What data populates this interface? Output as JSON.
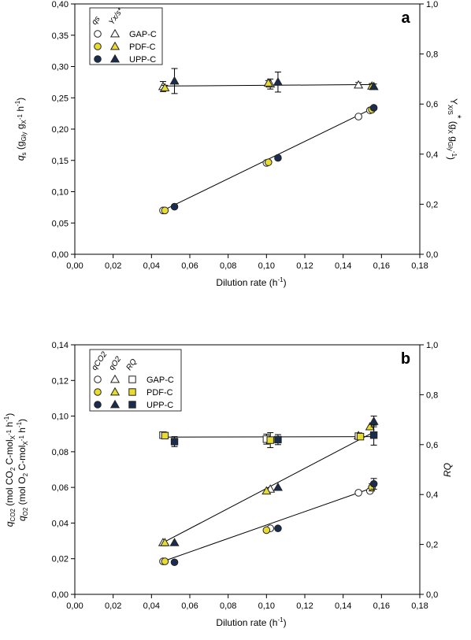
{
  "chart_data": [
    {
      "type": "scatter",
      "panel_label": "a",
      "xlabel": "Dilution rate (h",
      "xlabel_sup": "-1",
      "xlabel_end": ")",
      "ylabel": "q_s (g_Gly g_X^-1 h^-1)",
      "y2label": "Y_X/S* (g_X g_Gly^-1)",
      "xlim": [
        0,
        0.18
      ],
      "ylim": [
        0,
        0.4
      ],
      "y2lim": [
        0,
        1.0
      ],
      "x_ticks": [
        "0,00",
        "0,02",
        "0,04",
        "0,06",
        "0,08",
        "0,10",
        "0,12",
        "0,14",
        "0,16",
        "0,18"
      ],
      "y_ticks": [
        "0,00",
        "0,05",
        "0,10",
        "0,15",
        "0,20",
        "0,25",
        "0,30",
        "0,35",
        "0,40"
      ],
      "y2_ticks": [
        "0,0",
        "0,2",
        "0,4",
        "0,6",
        "0,8",
        "1,0"
      ],
      "legend": {
        "position": "top-left",
        "column_headers": [
          "qs",
          "Yx/s*"
        ],
        "entries": [
          "GAP-C",
          "PDF-C",
          "UPP-C"
        ]
      },
      "series": [
        {
          "name": "GAP-C",
          "variable": "qs",
          "marker": "circle",
          "fill": "#ffffff",
          "axis": "left",
          "x": [
            0.046,
            0.1,
            0.148,
            0.154
          ],
          "y": [
            0.07,
            0.146,
            0.22,
            0.23
          ],
          "err": [
            0,
            0,
            0,
            0
          ]
        },
        {
          "name": "PDF-C",
          "variable": "qs",
          "marker": "circle",
          "fill": "#e9dc2e",
          "axis": "left",
          "x": [
            0.047,
            0.101,
            0.155
          ],
          "y": [
            0.07,
            0.147,
            0.231
          ],
          "err": [
            0,
            0,
            0
          ]
        },
        {
          "name": "UPP-C",
          "variable": "qs",
          "marker": "circle",
          "fill": "#1b2d4e",
          "axis": "left",
          "x": [
            0.052,
            0.106,
            0.156
          ],
          "y": [
            0.076,
            0.154,
            0.234
          ],
          "err": [
            0,
            0.003,
            0.003
          ]
        },
        {
          "name": "GAP-C",
          "variable": "Yx/s*",
          "marker": "triangle",
          "fill": "#ffffff",
          "axis": "right",
          "x": [
            0.046,
            0.102,
            0.148
          ],
          "y": [
            0.67,
            0.68,
            0.676
          ],
          "err": [
            0.02,
            0.02,
            0.01
          ]
        },
        {
          "name": "PDF-C",
          "variable": "Yx/s*",
          "marker": "triangle",
          "fill": "#e9dc2e",
          "axis": "right",
          "x": [
            0.047,
            0.101,
            0.155
          ],
          "y": [
            0.665,
            0.684,
            0.672
          ],
          "err": [
            0.01,
            0.01,
            0.01
          ]
        },
        {
          "name": "UPP-C",
          "variable": "Yx/s*",
          "marker": "triangle",
          "fill": "#1b2d4e",
          "axis": "right",
          "x": [
            0.052,
            0.106,
            0.156
          ],
          "y": [
            0.692,
            0.688,
            0.67
          ],
          "err": [
            0.05,
            0.04,
            0.01
          ]
        }
      ],
      "fit_lines": [
        {
          "axis": "left",
          "x": [
            0.046,
            0.156
          ],
          "y": [
            0.07,
            0.234
          ]
        },
        {
          "axis": "right",
          "x": [
            0.046,
            0.156
          ],
          "y": [
            0.672,
            0.678
          ]
        }
      ]
    },
    {
      "type": "scatter",
      "panel_label": "b",
      "xlabel": "Dilution rate (h",
      "xlabel_sup": "-1",
      "xlabel_end": ")",
      "ylabel": "q_CO2 (mol CO2 C-mol_X^-1 h^-1), q_O2 (mol O2 C-mol_X^-1 h^-1)",
      "y2label": "RQ",
      "xlim": [
        0,
        0.18
      ],
      "ylim": [
        0,
        0.14
      ],
      "y2lim": [
        0,
        1.0
      ],
      "x_ticks": [
        "0,00",
        "0,02",
        "0,04",
        "0,06",
        "0,08",
        "0,10",
        "0,12",
        "0,14",
        "0,16",
        "0,18"
      ],
      "y_ticks": [
        "0,00",
        "0,02",
        "0,04",
        "0,06",
        "0,08",
        "0,10",
        "0,12",
        "0,14"
      ],
      "y2_ticks": [
        "0,0",
        "0,2",
        "0,4",
        "0,6",
        "0,8",
        "1,0"
      ],
      "legend": {
        "position": "top-left",
        "column_headers": [
          "qCO2",
          "qO2",
          "RQ"
        ],
        "entries": [
          "GAP-C",
          "PDF-C",
          "UPP-C"
        ]
      },
      "series": [
        {
          "name": "GAP-C",
          "variable": "qCO2",
          "marker": "circle",
          "fill": "#ffffff",
          "axis": "left",
          "x": [
            0.046,
            0.102,
            0.148,
            0.154
          ],
          "y": [
            0.0185,
            0.037,
            0.057,
            0.058
          ],
          "err": [
            0,
            0,
            0,
            0
          ]
        },
        {
          "name": "PDF-C",
          "variable": "qCO2",
          "marker": "circle",
          "fill": "#e9dc2e",
          "axis": "left",
          "x": [
            0.047,
            0.1,
            0.155
          ],
          "y": [
            0.0185,
            0.036,
            0.06
          ],
          "err": [
            0,
            0,
            0.002
          ]
        },
        {
          "name": "UPP-C",
          "variable": "qCO2",
          "marker": "circle",
          "fill": "#1b2d4e",
          "axis": "left",
          "x": [
            0.052,
            0.106,
            0.156
          ],
          "y": [
            0.018,
            0.037,
            0.062
          ],
          "err": [
            0,
            0,
            0.003
          ]
        },
        {
          "name": "GAP-C",
          "variable": "qO2",
          "marker": "triangle",
          "fill": "#ffffff",
          "axis": "left",
          "x": [
            0.046,
            0.102,
            0.148
          ],
          "y": [
            0.029,
            0.059,
            0.089
          ],
          "err": [
            0,
            0,
            0
          ]
        },
        {
          "name": "PDF-C",
          "variable": "qO2",
          "marker": "triangle",
          "fill": "#e9dc2e",
          "axis": "left",
          "x": [
            0.047,
            0.1,
            0.154
          ],
          "y": [
            0.029,
            0.058,
            0.094
          ],
          "err": [
            0,
            0,
            0
          ]
        },
        {
          "name": "UPP-C",
          "variable": "qO2",
          "marker": "triangle",
          "fill": "#1b2d4e",
          "axis": "left",
          "x": [
            0.052,
            0.106,
            0.156
          ],
          "y": [
            0.029,
            0.06,
            0.097
          ],
          "err": [
            0,
            0,
            0.003
          ]
        },
        {
          "name": "GAP-C",
          "variable": "RQ",
          "marker": "square",
          "fill": "#ffffff",
          "axis": "right",
          "x": [
            0.046,
            0.1,
            0.148
          ],
          "y": [
            0.638,
            0.622,
            0.634
          ],
          "err": [
            0.01,
            0.02,
            0.01
          ]
        },
        {
          "name": "PDF-C",
          "variable": "RQ",
          "marker": "square",
          "fill": "#e9dc2e",
          "axis": "right",
          "x": [
            0.047,
            0.102,
            0.149
          ],
          "y": [
            0.636,
            0.618,
            0.632
          ],
          "err": [
            0.01,
            0.03,
            0.01
          ]
        },
        {
          "name": "UPP-C",
          "variable": "RQ",
          "marker": "square",
          "fill": "#1b2d4e",
          "axis": "right",
          "x": [
            0.052,
            0.106,
            0.156
          ],
          "y": [
            0.612,
            0.62,
            0.638
          ],
          "err": [
            0.02,
            0.02,
            0.04
          ]
        }
      ],
      "fit_lines": [
        {
          "axis": "left",
          "x": [
            0.046,
            0.156
          ],
          "y": [
            0.0185,
            0.06
          ]
        },
        {
          "axis": "left",
          "x": [
            0.046,
            0.156
          ],
          "y": [
            0.029,
            0.091
          ]
        },
        {
          "axis": "right",
          "x": [
            0.046,
            0.156
          ],
          "y": [
            0.63,
            0.632
          ]
        }
      ]
    }
  ]
}
